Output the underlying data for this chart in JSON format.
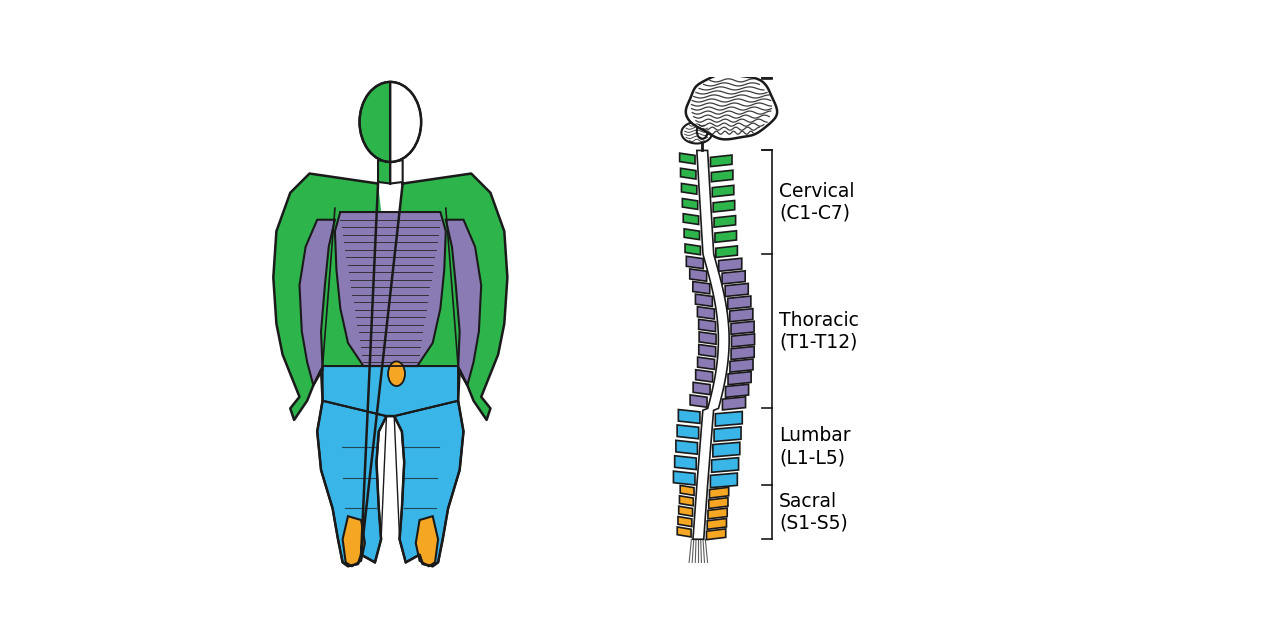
{
  "bg_color": "#ffffff",
  "cervical_color": "#2db54b",
  "thoracic_color": "#8b7bb5",
  "lumbar_color": "#3ab5e8",
  "sacral_color": "#f5a623",
  "outline_color": "#1a1a1a",
  "labels": {
    "cervical": "Cervical\n(C1-C7)",
    "thoracic": "Thoracic\n(T1-T12)",
    "lumbar": "Lumbar\n(L1-L5)",
    "sacral": "Sacral\n(S1-S5)"
  },
  "label_fontsize": 13.5
}
